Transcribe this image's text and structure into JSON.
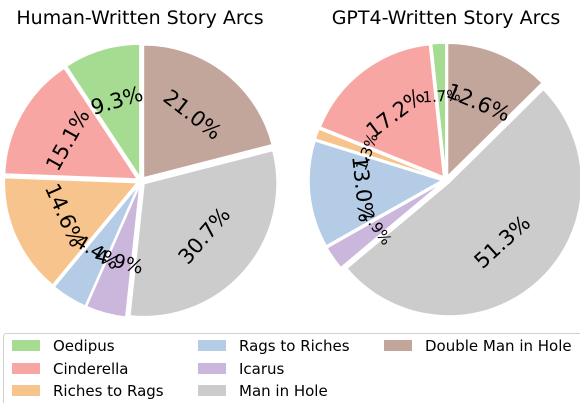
{
  "legend": {
    "placement": "bottom",
    "columns": 3,
    "items": [
      {
        "label": "Oedipus",
        "color": "#a5dc92"
      },
      {
        "label": "Cinderella",
        "color": "#f7a6a3"
      },
      {
        "label": "Riches to Rags",
        "color": "#f8c48e"
      },
      {
        "label": "Rags to Riches",
        "color": "#b4cce6"
      },
      {
        "label": "Icarus",
        "color": "#cbb6dc"
      },
      {
        "label": "Man in Hole",
        "color": "#cccccc"
      },
      {
        "label": "Double Man in Hole",
        "color": "#c2a59b"
      }
    ]
  },
  "chart_data": [
    {
      "type": "pie",
      "title": "Human-Written Story Arcs",
      "start_angle": 90,
      "counterclock": true,
      "labels": [
        "Oedipus",
        "Cinderella",
        "Riches to Rags",
        "Rags to Riches",
        "Icarus",
        "Man in Hole",
        "Double Man in Hole"
      ],
      "values": [
        9.3,
        15.1,
        14.6,
        4.4,
        4.9,
        30.7,
        21.0
      ],
      "label_texts": [
        "9.3%",
        "15.1%",
        "14.6%",
        "4.4%",
        "4.9%",
        "30.7%",
        "21.0%"
      ]
    },
    {
      "type": "pie",
      "title": "GPT4-Written Story Arcs",
      "start_angle": 90,
      "counterclock": true,
      "labels": [
        "Oedipus",
        "Cinderella",
        "Riches to Rags",
        "Rags to Riches",
        "Icarus",
        "Man in Hole",
        "Double Man in Hole"
      ],
      "values": [
        1.7,
        17.2,
        1.3,
        13.0,
        2.9,
        51.3,
        12.6
      ],
      "label_texts": [
        "1.7%",
        "17.2%",
        "1.3%",
        "13.0%",
        "2.9%",
        "51.3%",
        "12.6%"
      ]
    }
  ]
}
